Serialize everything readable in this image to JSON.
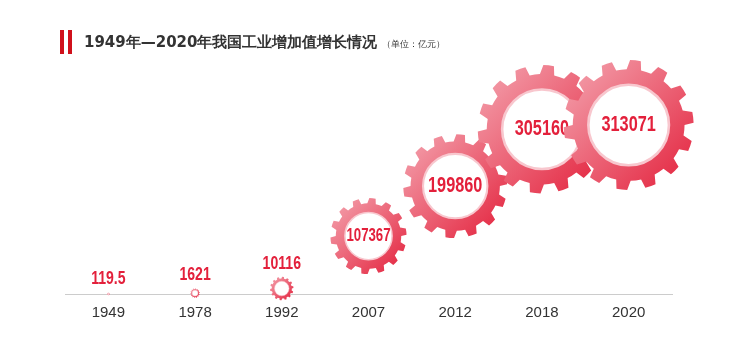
{
  "chart_data": {
    "type": "bubble",
    "title": "1949年—2020年我国工业增加值增长情况",
    "subtitle": "（单位：亿元）",
    "categories": [
      "1949",
      "1978",
      "1992",
      "2007",
      "2012",
      "2018",
      "2020"
    ],
    "values": [
      119.5,
      1621,
      10116,
      107367,
      199860,
      305160,
      313071
    ],
    "color": "#e3203b",
    "data_labels": true,
    "tick_labels": "x",
    "grid": false
  }
}
